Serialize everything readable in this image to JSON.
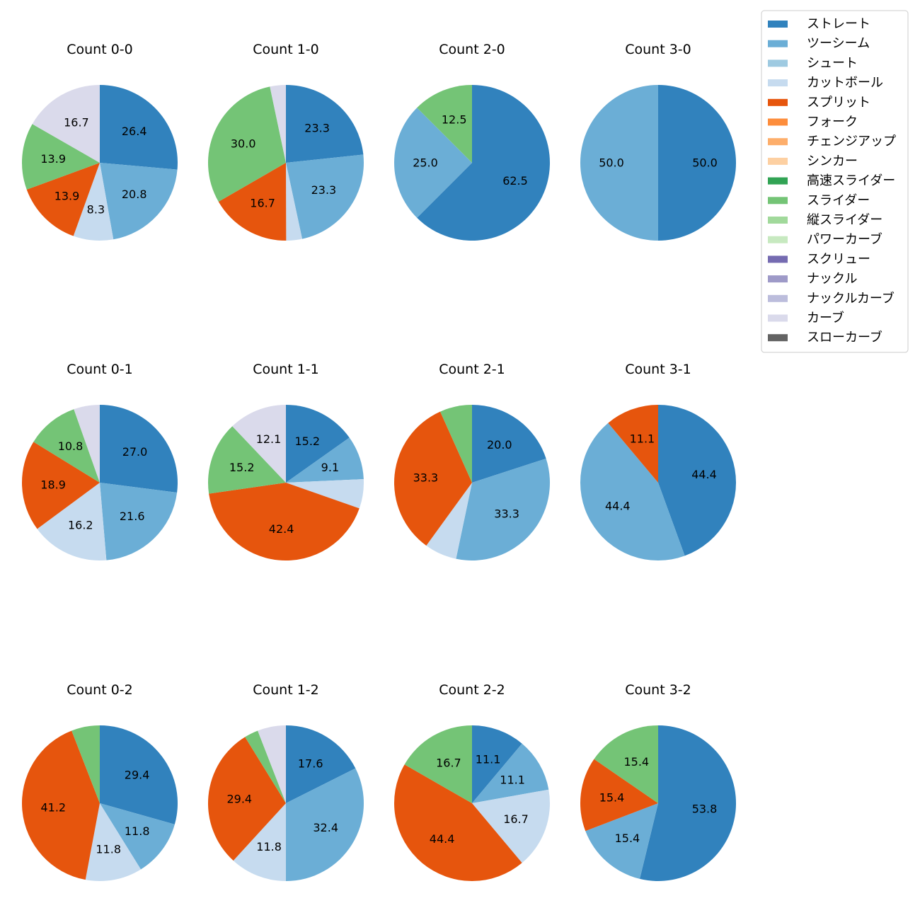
{
  "chart_data": {
    "type": "pie",
    "legend": {
      "position": "top-right",
      "entries": [
        {
          "label": "ストレート",
          "color": "#3182bd"
        },
        {
          "label": "ツーシーム",
          "color": "#6baed6"
        },
        {
          "label": "シュート",
          "color": "#9ecae1"
        },
        {
          "label": "カットボール",
          "color": "#c6dbef"
        },
        {
          "label": "スプリット",
          "color": "#e6550d"
        },
        {
          "label": "フォーク",
          "color": "#fd8d3c"
        },
        {
          "label": "チェンジアップ",
          "color": "#fdae6b"
        },
        {
          "label": "シンカー",
          "color": "#fdd0a2"
        },
        {
          "label": "高速スライダー",
          "color": "#31a354"
        },
        {
          "label": "スライダー",
          "color": "#74c476"
        },
        {
          "label": "縦スライダー",
          "color": "#a1d99b"
        },
        {
          "label": "パワーカーブ",
          "color": "#c7e9c0"
        },
        {
          "label": "スクリュー",
          "color": "#756bb1"
        },
        {
          "label": "ナックル",
          "color": "#9e9ac8"
        },
        {
          "label": "ナックルカーブ",
          "color": "#bcbddc"
        },
        {
          "label": "カーブ",
          "color": "#dadaeb"
        },
        {
          "label": "スローカーブ",
          "color": "#636363"
        }
      ]
    },
    "charts": [
      {
        "title": "Count 0-0",
        "slices": [
          {
            "pitch": "ストレート",
            "value": 26.4,
            "label": "26.4"
          },
          {
            "pitch": "ツーシーム",
            "value": 20.8,
            "label": "20.8"
          },
          {
            "pitch": "カットボール",
            "value": 8.3,
            "label": "8.3"
          },
          {
            "pitch": "スプリット",
            "value": 13.9,
            "label": "13.9"
          },
          {
            "pitch": "スライダー",
            "value": 13.9,
            "label": "13.9"
          },
          {
            "pitch": "カーブ",
            "value": 16.7,
            "label": "16.7"
          }
        ]
      },
      {
        "title": "Count 1-0",
        "slices": [
          {
            "pitch": "ストレート",
            "value": 23.3,
            "label": "23.3"
          },
          {
            "pitch": "ツーシーム",
            "value": 23.3,
            "label": "23.3"
          },
          {
            "pitch": "カットボール",
            "value": 3.3,
            "label": ""
          },
          {
            "pitch": "スプリット",
            "value": 16.7,
            "label": "16.7"
          },
          {
            "pitch": "スライダー",
            "value": 30.0,
            "label": "30.0"
          },
          {
            "pitch": "カーブ",
            "value": 3.3,
            "label": ""
          }
        ]
      },
      {
        "title": "Count 2-0",
        "slices": [
          {
            "pitch": "ストレート",
            "value": 62.5,
            "label": "62.5"
          },
          {
            "pitch": "ツーシーム",
            "value": 25.0,
            "label": "25.0"
          },
          {
            "pitch": "スライダー",
            "value": 12.5,
            "label": "12.5"
          }
        ]
      },
      {
        "title": "Count 3-0",
        "slices": [
          {
            "pitch": "ストレート",
            "value": 50.0,
            "label": "50.0"
          },
          {
            "pitch": "ツーシーム",
            "value": 50.0,
            "label": "50.0"
          }
        ]
      },
      {
        "title": "Count 0-1",
        "slices": [
          {
            "pitch": "ストレート",
            "value": 27.0,
            "label": "27.0"
          },
          {
            "pitch": "ツーシーム",
            "value": 21.6,
            "label": "21.6"
          },
          {
            "pitch": "カットボール",
            "value": 16.2,
            "label": "16.2"
          },
          {
            "pitch": "スプリット",
            "value": 18.9,
            "label": "18.9"
          },
          {
            "pitch": "スライダー",
            "value": 10.8,
            "label": "10.8"
          },
          {
            "pitch": "カーブ",
            "value": 5.4,
            "label": ""
          }
        ]
      },
      {
        "title": "Count 1-1",
        "slices": [
          {
            "pitch": "ストレート",
            "value": 15.2,
            "label": "15.2"
          },
          {
            "pitch": "ツーシーム",
            "value": 9.1,
            "label": "9.1"
          },
          {
            "pitch": "カットボール",
            "value": 6.1,
            "label": ""
          },
          {
            "pitch": "スプリット",
            "value": 42.4,
            "label": "42.4"
          },
          {
            "pitch": "スライダー",
            "value": 15.2,
            "label": "15.2"
          },
          {
            "pitch": "カーブ",
            "value": 12.1,
            "label": "12.1"
          }
        ]
      },
      {
        "title": "Count 2-1",
        "slices": [
          {
            "pitch": "ストレート",
            "value": 20.0,
            "label": "20.0"
          },
          {
            "pitch": "ツーシーム",
            "value": 33.3,
            "label": "33.3"
          },
          {
            "pitch": "カットボール",
            "value": 6.7,
            "label": ""
          },
          {
            "pitch": "スプリット",
            "value": 33.3,
            "label": "33.3"
          },
          {
            "pitch": "スライダー",
            "value": 6.7,
            "label": ""
          }
        ]
      },
      {
        "title": "Count 3-1",
        "slices": [
          {
            "pitch": "ストレート",
            "value": 44.4,
            "label": "44.4"
          },
          {
            "pitch": "ツーシーム",
            "value": 44.4,
            "label": "44.4"
          },
          {
            "pitch": "スプリット",
            "value": 11.1,
            "label": "11.1"
          }
        ]
      },
      {
        "title": "Count 0-2",
        "slices": [
          {
            "pitch": "ストレート",
            "value": 29.4,
            "label": "29.4"
          },
          {
            "pitch": "ツーシーム",
            "value": 11.8,
            "label": "11.8"
          },
          {
            "pitch": "カットボール",
            "value": 11.8,
            "label": "11.8"
          },
          {
            "pitch": "スプリット",
            "value": 41.2,
            "label": "41.2"
          },
          {
            "pitch": "スライダー",
            "value": 5.9,
            "label": ""
          }
        ]
      },
      {
        "title": "Count 1-2",
        "slices": [
          {
            "pitch": "ストレート",
            "value": 17.6,
            "label": "17.6"
          },
          {
            "pitch": "ツーシーム",
            "value": 32.4,
            "label": "32.4"
          },
          {
            "pitch": "カットボール",
            "value": 11.8,
            "label": "11.8"
          },
          {
            "pitch": "スプリット",
            "value": 29.4,
            "label": "29.4"
          },
          {
            "pitch": "スライダー",
            "value": 2.9,
            "label": ""
          },
          {
            "pitch": "カーブ",
            "value": 5.9,
            "label": ""
          }
        ]
      },
      {
        "title": "Count 2-2",
        "slices": [
          {
            "pitch": "ストレート",
            "value": 11.1,
            "label": "11.1"
          },
          {
            "pitch": "ツーシーム",
            "value": 11.1,
            "label": "11.1"
          },
          {
            "pitch": "カットボール",
            "value": 16.7,
            "label": "16.7"
          },
          {
            "pitch": "スプリット",
            "value": 44.4,
            "label": "44.4"
          },
          {
            "pitch": "スライダー",
            "value": 16.7,
            "label": "16.7"
          }
        ]
      },
      {
        "title": "Count 3-2",
        "slices": [
          {
            "pitch": "ストレート",
            "value": 53.8,
            "label": "53.8"
          },
          {
            "pitch": "ツーシーム",
            "value": 15.4,
            "label": "15.4"
          },
          {
            "pitch": "スプリット",
            "value": 15.4,
            "label": "15.4"
          },
          {
            "pitch": "スライダー",
            "value": 15.4,
            "label": "15.4"
          }
        ]
      }
    ]
  }
}
